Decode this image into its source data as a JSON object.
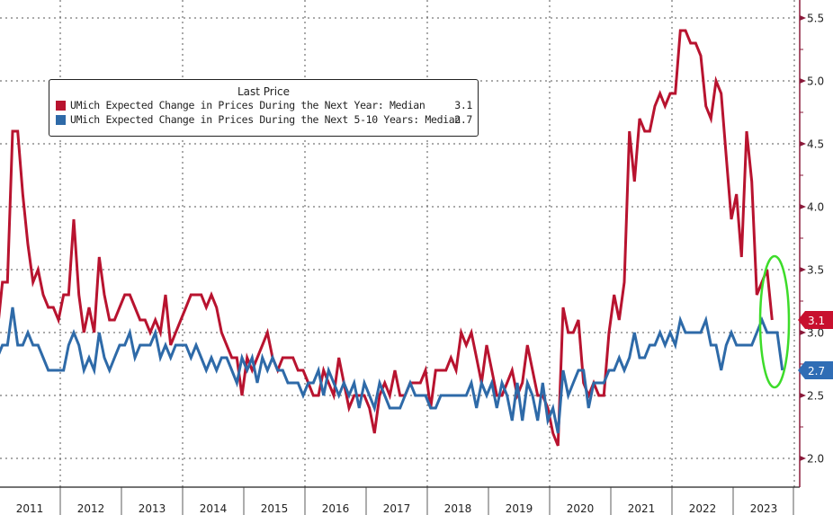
{
  "chart_data": {
    "type": "line",
    "title": "",
    "xlabel": "",
    "ylabel": "",
    "ylim": [
      1.75,
      5.65
    ],
    "yticks": [
      "2.0",
      "2.5",
      "3.0",
      "3.5",
      "4.0",
      "4.5",
      "5.0",
      "5.5"
    ],
    "x_start": "2011-01",
    "x_frequency": "monthly",
    "x_tick_labels": [
      "2011",
      "2012",
      "2013",
      "2014",
      "2015",
      "2016",
      "2017",
      "2018",
      "2019",
      "2020",
      "2021",
      "2022",
      "2023"
    ],
    "grid": true,
    "legend": {
      "placement": "top-left",
      "title": "Last Price",
      "entries": [
        {
          "label": "UMich Expected Change in Prices During the Next Year: Median",
          "last": "3.1",
          "color": "#b8132f"
        },
        {
          "label": "UMich Expected Change in Prices During the Next 5-10 Years: Median",
          "last": "2.7",
          "color": "#2e6aa8"
        }
      ]
    },
    "last_value_tags": [
      {
        "series": 0,
        "text": "3.1",
        "value": 3.1,
        "color": "#c8102e"
      },
      {
        "series": 1,
        "text": "2.7",
        "value": 2.7,
        "color": "#2f6db5"
      }
    ],
    "annotation": {
      "type": "ellipse",
      "color": "#3ddc2a",
      "around": "latest 2023 readings"
    },
    "series": [
      {
        "name": "UMich Expected Change in Prices During the Next Year: Median",
        "color": "#b8132f",
        "values": [
          3.0,
          3.4,
          3.4,
          4.6,
          4.6,
          4.1,
          3.7,
          3.4,
          3.5,
          3.3,
          3.2,
          3.2,
          3.1,
          3.3,
          3.3,
          3.9,
          3.3,
          3.0,
          3.2,
          3.0,
          3.6,
          3.3,
          3.1,
          3.1,
          3.2,
          3.3,
          3.3,
          3.2,
          3.1,
          3.1,
          3.0,
          3.1,
          3.0,
          3.3,
          2.9,
          3.0,
          3.1,
          3.2,
          3.3,
          3.3,
          3.3,
          3.2,
          3.3,
          3.2,
          3.0,
          2.9,
          2.8,
          2.8,
          2.5,
          2.8,
          2.7,
          2.8,
          2.9,
          3.0,
          2.8,
          2.7,
          2.8,
          2.8,
          2.8,
          2.7,
          2.7,
          2.6,
          2.5,
          2.5,
          2.7,
          2.6,
          2.5,
          2.8,
          2.6,
          2.4,
          2.5,
          2.5,
          2.5,
          2.4,
          2.2,
          2.5,
          2.6,
          2.5,
          2.7,
          2.5,
          2.5,
          2.6,
          2.6,
          2.6,
          2.7,
          2.4,
          2.7,
          2.7,
          2.7,
          2.8,
          2.7,
          3.0,
          2.9,
          3.0,
          2.8,
          2.6,
          2.9,
          2.7,
          2.5,
          2.5,
          2.6,
          2.7,
          2.5,
          2.6,
          2.9,
          2.7,
          2.5,
          2.5,
          2.4,
          2.2,
          2.1,
          3.2,
          3.0,
          3.0,
          3.1,
          2.6,
          2.5,
          2.6,
          2.5,
          2.5,
          3.0,
          3.3,
          3.1,
          3.4,
          4.6,
          4.2,
          4.7,
          4.6,
          4.6,
          4.8,
          4.9,
          4.8,
          4.9,
          4.9,
          5.4,
          5.4,
          5.3,
          5.3,
          5.2,
          4.8,
          4.7,
          5.0,
          4.9,
          4.4,
          3.9,
          4.1,
          3.6,
          4.6,
          4.2,
          3.3,
          3.4,
          3.5,
          3.1
        ]
      },
      {
        "name": "UMich Expected Change in Prices During the Next 5-10 Years: Median",
        "color": "#2e6aa8",
        "values": [
          2.8,
          2.9,
          2.9,
          3.2,
          2.9,
          2.9,
          3.0,
          2.9,
          2.9,
          2.8,
          2.7,
          2.7,
          2.7,
          2.7,
          2.9,
          3.0,
          2.9,
          2.7,
          2.8,
          2.7,
          3.0,
          2.8,
          2.7,
          2.8,
          2.9,
          2.9,
          3.0,
          2.8,
          2.9,
          2.9,
          2.9,
          3.0,
          2.8,
          2.9,
          2.8,
          2.9,
          2.9,
          2.9,
          2.8,
          2.9,
          2.8,
          2.7,
          2.8,
          2.7,
          2.8,
          2.8,
          2.7,
          2.6,
          2.8,
          2.7,
          2.8,
          2.6,
          2.8,
          2.7,
          2.8,
          2.7,
          2.7,
          2.6,
          2.6,
          2.6,
          2.5,
          2.6,
          2.6,
          2.7,
          2.5,
          2.7,
          2.6,
          2.5,
          2.6,
          2.5,
          2.6,
          2.4,
          2.6,
          2.5,
          2.4,
          2.6,
          2.5,
          2.4,
          2.4,
          2.4,
          2.5,
          2.6,
          2.5,
          2.5,
          2.5,
          2.4,
          2.4,
          2.5,
          2.5,
          2.5,
          2.5,
          2.5,
          2.5,
          2.6,
          2.4,
          2.6,
          2.5,
          2.6,
          2.4,
          2.6,
          2.5,
          2.3,
          2.6,
          2.3,
          2.6,
          2.5,
          2.3,
          2.6,
          2.3,
          2.4,
          2.2,
          2.7,
          2.5,
          2.6,
          2.7,
          2.7,
          2.4,
          2.6,
          2.6,
          2.6,
          2.7,
          2.7,
          2.8,
          2.7,
          2.8,
          3.0,
          2.8,
          2.8,
          2.9,
          2.9,
          3.0,
          2.9,
          3.0,
          2.9,
          3.1,
          3.0,
          3.0,
          3.0,
          3.0,
          3.1,
          2.9,
          2.9,
          2.7,
          2.9,
          3.0,
          2.9,
          2.9,
          2.9,
          2.9,
          3.0,
          3.1,
          3.0,
          3.0,
          3.0,
          2.7
        ]
      }
    ]
  }
}
